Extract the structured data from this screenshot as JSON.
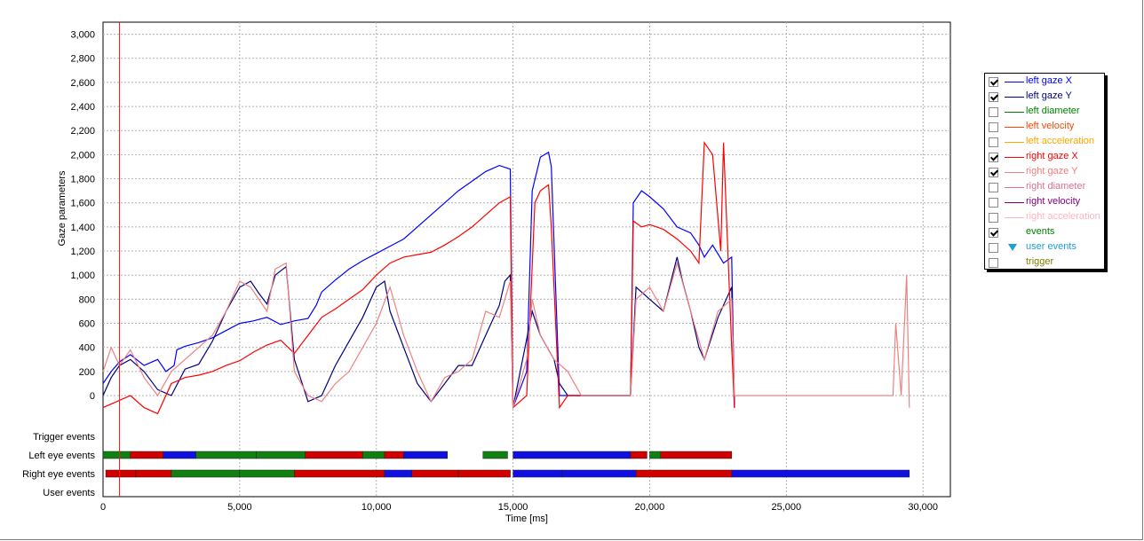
{
  "chart_data": {
    "type": "line",
    "xlabel": "Time [ms]",
    "ylabel": "Gaze parameters",
    "xlim": [
      0,
      31000
    ],
    "ylim": [
      -250,
      3100
    ],
    "x_ticks": [
      0,
      5000,
      10000,
      15000,
      20000,
      25000,
      30000
    ],
    "x_tick_labels": [
      "0",
      "5,000",
      "10,000",
      "15,000",
      "20,000",
      "25,000",
      "30,000"
    ],
    "y_ticks": [
      0,
      200,
      400,
      600,
      800,
      1000,
      1200,
      1400,
      1600,
      1800,
      2000,
      2200,
      2400,
      2600,
      2800,
      3000
    ],
    "y_tick_labels": [
      "0",
      "200",
      "400",
      "600",
      "800",
      "1,000",
      "1,200",
      "1,400",
      "1,600",
      "1,800",
      "2,000",
      "2,200",
      "2,400",
      "2,600",
      "2,800",
      "3,000"
    ],
    "grid": true,
    "cursor_x": 600,
    "series": [
      {
        "name": "left gaze X",
        "color": "#0000ff",
        "points": [
          [
            0,
            100
          ],
          [
            300,
            200
          ],
          [
            600,
            280
          ],
          [
            1000,
            340
          ],
          [
            1500,
            250
          ],
          [
            2000,
            300
          ],
          [
            2300,
            200
          ],
          [
            2600,
            250
          ],
          [
            2700,
            380
          ],
          [
            3000,
            410
          ],
          [
            3500,
            440
          ],
          [
            4000,
            480
          ],
          [
            4500,
            540
          ],
          [
            5000,
            600
          ],
          [
            5500,
            620
          ],
          [
            6000,
            650
          ],
          [
            6500,
            590
          ],
          [
            7000,
            620
          ],
          [
            7500,
            640
          ],
          [
            7800,
            750
          ],
          [
            8000,
            860
          ],
          [
            8500,
            960
          ],
          [
            9000,
            1050
          ],
          [
            9500,
            1120
          ],
          [
            10000,
            1180
          ],
          [
            10500,
            1240
          ],
          [
            11000,
            1300
          ],
          [
            11500,
            1400
          ],
          [
            12000,
            1500
          ],
          [
            12500,
            1600
          ],
          [
            13000,
            1700
          ],
          [
            13500,
            1780
          ],
          [
            14000,
            1860
          ],
          [
            14500,
            1910
          ],
          [
            14900,
            1880
          ],
          [
            15000,
            -100
          ],
          [
            15500,
            200
          ],
          [
            15700,
            1700
          ],
          [
            16000,
            1980
          ],
          [
            16300,
            2020
          ],
          [
            16400,
            1900
          ],
          [
            16700,
            0
          ],
          [
            17000,
            0
          ],
          [
            19300,
            0
          ],
          [
            19400,
            1600
          ],
          [
            19700,
            1700
          ],
          [
            20000,
            1650
          ],
          [
            20500,
            1550
          ],
          [
            21000,
            1400
          ],
          [
            21500,
            1350
          ],
          [
            21800,
            1250
          ],
          [
            22000,
            1150
          ],
          [
            22300,
            1250
          ],
          [
            22700,
            1100
          ],
          [
            23000,
            1150
          ],
          [
            23100,
            -100
          ]
        ]
      },
      {
        "name": "left gaze Y",
        "color": "#000080",
        "points": [
          [
            0,
            0
          ],
          [
            300,
            150
          ],
          [
            600,
            250
          ],
          [
            1000,
            300
          ],
          [
            1500,
            200
          ],
          [
            2000,
            50
          ],
          [
            2500,
            0
          ],
          [
            3000,
            220
          ],
          [
            3500,
            260
          ],
          [
            4000,
            450
          ],
          [
            4500,
            700
          ],
          [
            5000,
            900
          ],
          [
            5400,
            950
          ],
          [
            5700,
            850
          ],
          [
            6000,
            760
          ],
          [
            6300,
            1000
          ],
          [
            6700,
            1070
          ],
          [
            7000,
            300
          ],
          [
            7500,
            -50
          ],
          [
            8000,
            0
          ],
          [
            8500,
            250
          ],
          [
            9000,
            450
          ],
          [
            9500,
            650
          ],
          [
            10000,
            900
          ],
          [
            10300,
            950
          ],
          [
            10500,
            700
          ],
          [
            11000,
            400
          ],
          [
            11500,
            100
          ],
          [
            12000,
            -50
          ],
          [
            12500,
            100
          ],
          [
            13000,
            250
          ],
          [
            13500,
            250
          ],
          [
            14000,
            500
          ],
          [
            14500,
            750
          ],
          [
            14700,
            950
          ],
          [
            14900,
            1000
          ],
          [
            15000,
            -100
          ],
          [
            15700,
            700
          ],
          [
            16000,
            500
          ],
          [
            16500,
            300
          ],
          [
            16700,
            100
          ],
          [
            17000,
            0
          ],
          [
            19300,
            0
          ],
          [
            19500,
            900
          ],
          [
            20000,
            800
          ],
          [
            20500,
            700
          ],
          [
            21000,
            1150
          ],
          [
            21200,
            950
          ],
          [
            21500,
            700
          ],
          [
            21800,
            400
          ],
          [
            22000,
            300
          ],
          [
            22500,
            650
          ],
          [
            23000,
            900
          ],
          [
            23100,
            -100
          ]
        ]
      },
      {
        "name": "right gaze X",
        "color": "#ff0000",
        "points": [
          [
            0,
            -100
          ],
          [
            500,
            -50
          ],
          [
            1000,
            0
          ],
          [
            1500,
            -100
          ],
          [
            2000,
            -150
          ],
          [
            2500,
            100
          ],
          [
            3000,
            150
          ],
          [
            3500,
            170
          ],
          [
            4000,
            200
          ],
          [
            4500,
            250
          ],
          [
            5000,
            290
          ],
          [
            5500,
            360
          ],
          [
            6000,
            420
          ],
          [
            6500,
            460
          ],
          [
            7000,
            350
          ],
          [
            7500,
            500
          ],
          [
            8000,
            650
          ],
          [
            8500,
            720
          ],
          [
            9000,
            800
          ],
          [
            9500,
            880
          ],
          [
            10000,
            1000
          ],
          [
            10500,
            1100
          ],
          [
            11000,
            1150
          ],
          [
            11500,
            1170
          ],
          [
            12000,
            1190
          ],
          [
            12500,
            1250
          ],
          [
            13000,
            1320
          ],
          [
            13500,
            1400
          ],
          [
            14000,
            1500
          ],
          [
            14500,
            1600
          ],
          [
            14900,
            1650
          ],
          [
            15000,
            -100
          ],
          [
            15500,
            0
          ],
          [
            15800,
            1600
          ],
          [
            16000,
            1700
          ],
          [
            16300,
            1750
          ],
          [
            16400,
            1400
          ],
          [
            16700,
            -100
          ],
          [
            17000,
            0
          ],
          [
            19300,
            0
          ],
          [
            19400,
            1450
          ],
          [
            19700,
            1400
          ],
          [
            20000,
            1420
          ],
          [
            20500,
            1380
          ],
          [
            21000,
            1300
          ],
          [
            21500,
            1200
          ],
          [
            21800,
            1100
          ],
          [
            22000,
            2100
          ],
          [
            22300,
            2000
          ],
          [
            22600,
            1200
          ],
          [
            22700,
            2100
          ],
          [
            23000,
            400
          ],
          [
            23100,
            -100
          ]
        ]
      },
      {
        "name": "right gaze Y",
        "color": "#f08080",
        "points": [
          [
            0,
            200
          ],
          [
            300,
            400
          ],
          [
            600,
            250
          ],
          [
            1000,
            380
          ],
          [
            1500,
            150
          ],
          [
            2000,
            0
          ],
          [
            2500,
            200
          ],
          [
            3000,
            300
          ],
          [
            3500,
            400
          ],
          [
            4000,
            500
          ],
          [
            4500,
            700
          ],
          [
            5000,
            950
          ],
          [
            5400,
            900
          ],
          [
            5700,
            800
          ],
          [
            6000,
            700
          ],
          [
            6300,
            1050
          ],
          [
            6700,
            1100
          ],
          [
            7000,
            200
          ],
          [
            7500,
            0
          ],
          [
            8000,
            -50
          ],
          [
            8500,
            100
          ],
          [
            9000,
            200
          ],
          [
            9500,
            400
          ],
          [
            10000,
            600
          ],
          [
            10500,
            900
          ],
          [
            11000,
            500
          ],
          [
            11500,
            200
          ],
          [
            12000,
            -50
          ],
          [
            12500,
            150
          ],
          [
            13000,
            200
          ],
          [
            13500,
            300
          ],
          [
            14000,
            700
          ],
          [
            14500,
            650
          ],
          [
            14900,
            950
          ],
          [
            15000,
            -100
          ],
          [
            15500,
            300
          ],
          [
            15700,
            800
          ],
          [
            16000,
            500
          ],
          [
            16500,
            300
          ],
          [
            17000,
            200
          ],
          [
            17500,
            0
          ],
          [
            19300,
            0
          ],
          [
            19500,
            800
          ],
          [
            20000,
            900
          ],
          [
            20500,
            700
          ],
          [
            21000,
            1100
          ],
          [
            21500,
            700
          ],
          [
            22000,
            300
          ],
          [
            22500,
            700
          ],
          [
            23000,
            800
          ],
          [
            23100,
            0
          ],
          [
            28900,
            0
          ],
          [
            29000,
            600
          ],
          [
            29200,
            0
          ],
          [
            29400,
            1000
          ],
          [
            29500,
            -100
          ]
        ]
      }
    ],
    "event_rows": [
      "Trigger events",
      "Left eye events",
      "Right eye events",
      "User events"
    ],
    "event_colors": {
      "fixation": "#1010e0",
      "saccade": "#108010",
      "blink": "#d00000"
    },
    "left_eye_events": [
      {
        "start": 0,
        "end": 1000,
        "kind": "saccade"
      },
      {
        "start": 1000,
        "end": 2200,
        "kind": "blink"
      },
      {
        "start": 2200,
        "end": 3400,
        "kind": "fixation"
      },
      {
        "start": 3400,
        "end": 5600,
        "kind": "saccade"
      },
      {
        "start": 5600,
        "end": 7400,
        "kind": "saccade"
      },
      {
        "start": 7400,
        "end": 9500,
        "kind": "blink"
      },
      {
        "start": 9500,
        "end": 10300,
        "kind": "saccade"
      },
      {
        "start": 10300,
        "end": 11000,
        "kind": "blink"
      },
      {
        "start": 11000,
        "end": 12600,
        "kind": "fixation"
      },
      {
        "start": 13900,
        "end": 14800,
        "kind": "saccade"
      },
      {
        "start": 15000,
        "end": 19300,
        "kind": "fixation"
      },
      {
        "start": 19300,
        "end": 19900,
        "kind": "blink"
      },
      {
        "start": 20000,
        "end": 20400,
        "kind": "saccade"
      },
      {
        "start": 20400,
        "end": 23000,
        "kind": "blink"
      }
    ],
    "right_eye_events": [
      {
        "start": 100,
        "end": 1200,
        "kind": "blink"
      },
      {
        "start": 1200,
        "end": 2500,
        "kind": "blink"
      },
      {
        "start": 2500,
        "end": 5000,
        "kind": "saccade"
      },
      {
        "start": 5000,
        "end": 7000,
        "kind": "saccade"
      },
      {
        "start": 7000,
        "end": 10300,
        "kind": "blink"
      },
      {
        "start": 10300,
        "end": 11300,
        "kind": "fixation"
      },
      {
        "start": 11300,
        "end": 13000,
        "kind": "blink"
      },
      {
        "start": 13000,
        "end": 14900,
        "kind": "blink"
      },
      {
        "start": 15000,
        "end": 16800,
        "kind": "fixation"
      },
      {
        "start": 16800,
        "end": 19500,
        "kind": "fixation"
      },
      {
        "start": 19500,
        "end": 23000,
        "kind": "blink"
      },
      {
        "start": 23000,
        "end": 29500,
        "kind": "fixation"
      }
    ]
  },
  "legend": {
    "items": [
      {
        "label": "left gaze X",
        "color": "#0000ff",
        "checked": true,
        "marker": "line"
      },
      {
        "label": "left gaze Y",
        "color": "#000080",
        "checked": true,
        "marker": "line"
      },
      {
        "label": "left diameter",
        "color": "#008000",
        "checked": false,
        "marker": "line"
      },
      {
        "label": "left velocity",
        "color": "#ff4500",
        "checked": false,
        "marker": "line"
      },
      {
        "label": "left acceleration",
        "color": "#ffa500",
        "checked": false,
        "marker": "line"
      },
      {
        "label": "right gaze X",
        "color": "#ff0000",
        "checked": true,
        "marker": "line"
      },
      {
        "label": "right gaze Y",
        "color": "#f08080",
        "checked": true,
        "marker": "line"
      },
      {
        "label": "right diameter",
        "color": "#db7093",
        "checked": false,
        "marker": "line"
      },
      {
        "label": "right velocity",
        "color": "#800080",
        "checked": false,
        "marker": "line"
      },
      {
        "label": "right acceleration",
        "color": "#ffb6c1",
        "checked": false,
        "marker": "line"
      },
      {
        "label": "events",
        "color": "#008000",
        "checked": true,
        "marker": "none"
      },
      {
        "label": "user events",
        "color": "#1a9fd8",
        "checked": false,
        "marker": "triangle"
      },
      {
        "label": "trigger",
        "color": "#808000",
        "checked": false,
        "marker": "none"
      }
    ]
  }
}
